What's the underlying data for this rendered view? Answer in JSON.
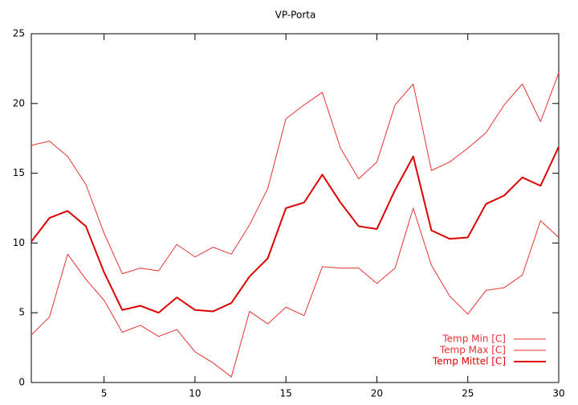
{
  "chart_data": {
    "type": "line",
    "title": "VP-Porta",
    "x": [
      1,
      2,
      3,
      4,
      5,
      6,
      7,
      8,
      9,
      10,
      11,
      12,
      13,
      14,
      15,
      16,
      17,
      18,
      19,
      20,
      21,
      22,
      23,
      24,
      25,
      26,
      27,
      28,
      29,
      30
    ],
    "series": [
      {
        "name": "Temp Min [C]",
        "color": "#e63232",
        "line_width": 1,
        "values": [
          3.4,
          4.7,
          9.2,
          7.4,
          5.9,
          3.6,
          4.1,
          3.3,
          3.8,
          2.2,
          1.4,
          0.4,
          5.1,
          4.2,
          5.4,
          4.8,
          8.3,
          8.2,
          8.2,
          7.1,
          8.2,
          12.5,
          8.4,
          6.2,
          4.9,
          6.6,
          6.8,
          7.7,
          11.6,
          10.4
        ]
      },
      {
        "name": "Temp Max [C]",
        "color": "#e63232",
        "line_width": 1,
        "values": [
          17.0,
          17.3,
          16.2,
          14.2,
          10.7,
          7.8,
          8.2,
          8.0,
          9.9,
          9.0,
          9.7,
          9.2,
          11.3,
          13.9,
          18.9,
          19.9,
          20.8,
          16.8,
          14.6,
          15.8,
          19.9,
          21.4,
          15.2,
          15.8,
          16.8,
          17.9,
          19.9,
          21.4,
          18.7,
          22.2
        ]
      },
      {
        "name": "Temp Mittel [C]",
        "color": "#dd0000",
        "line_width": 2,
        "values": [
          10.1,
          11.8,
          12.3,
          11.2,
          7.9,
          5.2,
          5.5,
          5.0,
          6.1,
          5.2,
          5.1,
          5.7,
          7.6,
          8.9,
          12.5,
          12.9,
          14.9,
          12.9,
          11.2,
          11.0,
          13.8,
          16.2,
          10.9,
          10.3,
          10.4,
          12.8,
          13.4,
          14.7,
          14.1,
          16.9
        ]
      }
    ],
    "xlim": [
      1,
      30
    ],
    "xticks": [
      5,
      10,
      15,
      20,
      25,
      30
    ],
    "ylim": [
      0,
      25
    ],
    "yticks": [
      0,
      5,
      10,
      15,
      20,
      25
    ],
    "grid": false,
    "legend_position": "lower-right"
  }
}
